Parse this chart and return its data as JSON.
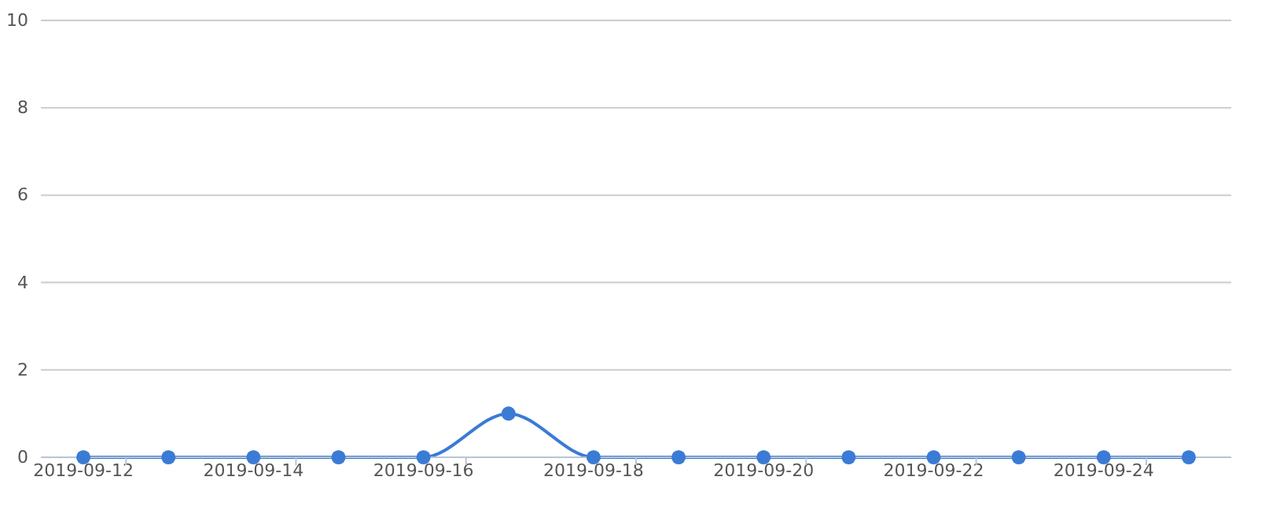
{
  "chart_data": {
    "type": "line",
    "categories": [
      "2019-09-12",
      null,
      "2019-09-14",
      null,
      "2019-09-16",
      null,
      "2019-09-18",
      null,
      "2019-09-20",
      null,
      "2019-09-22",
      null,
      "2019-09-24",
      null
    ],
    "series": [
      {
        "color": "#3a7bd5",
        "values": [
          0,
          0,
          0,
          0,
          0,
          1,
          0,
          0,
          0,
          0,
          0,
          0,
          0,
          0
        ]
      }
    ],
    "ylim": [
      0,
      10
    ],
    "yticks": [
      0,
      2,
      4,
      6,
      8,
      10
    ],
    "grid": "y",
    "marker": "circle",
    "line_style": "solid"
  }
}
